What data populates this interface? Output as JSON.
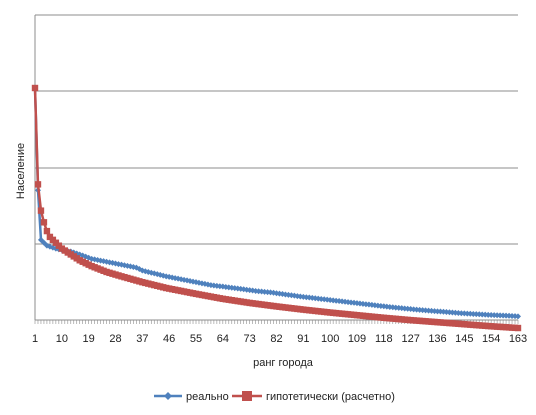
{
  "chart_data": {
    "type": "line",
    "xlabel": "ранг города",
    "ylabel": "Население",
    "x_tick_labels": [
      "1",
      "10",
      "19",
      "28",
      "37",
      "46",
      "55",
      "64",
      "73",
      "82",
      "91",
      "100",
      "109",
      "118",
      "127",
      "136",
      "145",
      "154",
      "163"
    ],
    "x_range": [
      1,
      163
    ],
    "y_tick_labels": [],
    "grid": "horizontal",
    "legend_position": "bottom",
    "series": [
      {
        "name": "реально",
        "color": "#4F81BD",
        "marker": "diamond",
        "x": [
          1,
          2,
          3,
          5,
          8,
          10,
          13,
          16,
          20,
          25,
          30,
          35,
          37,
          41,
          45,
          50,
          55,
          60,
          64,
          70,
          75,
          80,
          85,
          90,
          95,
          100,
          105,
          110,
          115,
          120,
          125,
          130,
          135,
          140,
          145,
          150,
          155,
          160,
          163
        ],
        "y": [
          100,
          65,
          48,
          46,
          45,
          44.5,
          44,
          43,
          41.5,
          40.5,
          39.5,
          38.5,
          37.5,
          36.5,
          35.5,
          34.5,
          33.5,
          32.5,
          32,
          31.2,
          30.5,
          30,
          29.3,
          28.6,
          28,
          27.4,
          26.8,
          26.2,
          25.6,
          25,
          24.5,
          24,
          23.6,
          23.2,
          22.8,
          22.5,
          22.2,
          22,
          21.8
        ]
      },
      {
        "name": "гипотетически (расчетно)",
        "color": "#C0504D",
        "marker": "square",
        "x": [
          1,
          2,
          3,
          4,
          5,
          6,
          8,
          10,
          13,
          16,
          20,
          25,
          30,
          37,
          45,
          55,
          64,
          73,
          82,
          91,
          100,
          109,
          118,
          127,
          136,
          145,
          154,
          163
        ],
        "y": [
          100,
          67,
          58,
          54,
          51,
          49,
          47,
          45,
          43,
          41,
          39,
          37,
          35.5,
          33.5,
          31.5,
          29.5,
          27.8,
          26.4,
          25.2,
          24.1,
          23.1,
          22.2,
          21.3,
          20.5,
          19.8,
          19.1,
          18.4,
          17.8
        ]
      }
    ]
  }
}
